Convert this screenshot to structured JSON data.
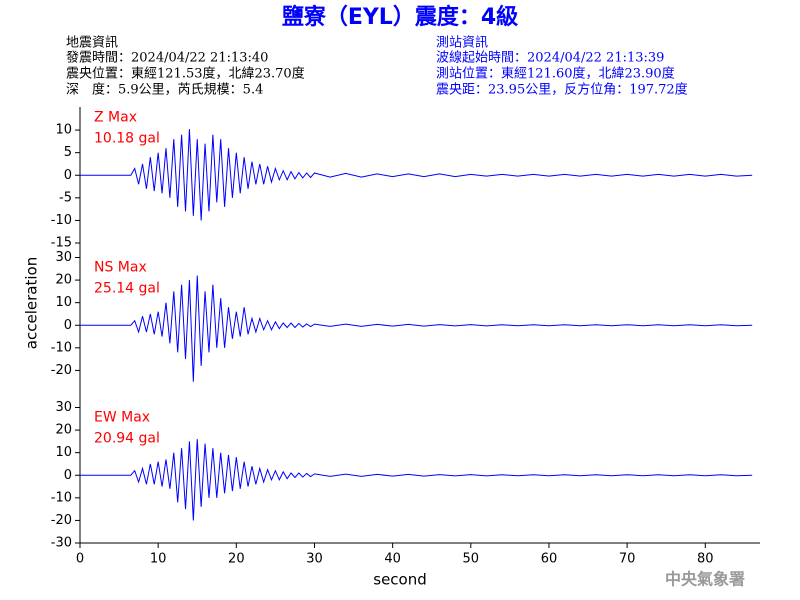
{
  "header": {
    "title": "鹽寮（EYL）震度：4級",
    "left": [
      "地震資訊",
      "發震時間：2024/04/22 21:13:40",
      "震央位置：東經121.53度，北緯23.70度",
      "深　度：5.9公里，芮氏規模：5.4"
    ],
    "right": [
      "測站資訊",
      "波線起始時間：2024/04/22 21:13:39",
      "測站位置：東經121.60度，北緯23.90度",
      "震央距：23.95公里，反方位角：197.72度"
    ]
  },
  "xlabel": "second",
  "ylabel": "acceleration",
  "footer": "中央氣象署",
  "chart_data": [
    {
      "type": "line",
      "label": "Z Max",
      "max_label": "10.18 gal",
      "color": "#0000ff",
      "x": [
        0,
        6.5,
        7,
        7.5,
        8,
        8.5,
        9,
        9.5,
        10,
        10.5,
        11,
        11.5,
        12,
        12.5,
        13,
        13.5,
        14,
        14.5,
        15,
        15.5,
        16,
        16.5,
        17,
        17.5,
        18,
        18.5,
        19,
        19.5,
        20,
        20.5,
        21,
        21.5,
        22,
        22.5,
        23,
        23.5,
        24,
        24.5,
        25,
        25.5,
        26,
        26.5,
        27,
        27.5,
        28,
        28.5,
        29,
        29.5,
        30,
        32,
        34,
        36,
        38,
        40,
        42,
        44,
        46,
        48,
        50,
        52,
        54,
        56,
        58,
        60,
        62,
        64,
        66,
        68,
        70,
        72,
        74,
        76,
        78,
        80,
        82,
        84,
        86
      ],
      "values": [
        0,
        0,
        1.5,
        -2,
        2.5,
        -3,
        4,
        -3.5,
        5,
        -4,
        6,
        -5,
        8,
        -7,
        9,
        -8,
        10.2,
        -9,
        8,
        -10,
        7,
        -8,
        9,
        -6,
        8,
        -7,
        6,
        -5,
        5,
        -4,
        4,
        -3,
        3,
        -2,
        2.5,
        -2,
        2,
        -1.5,
        1.5,
        -1,
        1,
        -1,
        0.8,
        -0.8,
        0.6,
        -0.6,
        0.5,
        -0.5,
        0.5,
        -0.4,
        0.4,
        -0.4,
        0.3,
        -0.3,
        0.3,
        -0.3,
        0.3,
        -0.3,
        0.2,
        -0.2,
        0.2,
        -0.2,
        0.2,
        -0.2,
        0.2,
        -0.2,
        0.2,
        -0.2,
        0.2,
        -0.2,
        0.2,
        -0.2,
        0.2,
        -0.2,
        0.2,
        -0.2,
        0
      ],
      "xlim": [
        0,
        87
      ],
      "ylim": [
        -15,
        15
      ],
      "yticks": [
        -15,
        -10,
        -5,
        0,
        5,
        10
      ]
    },
    {
      "type": "line",
      "label": "NS Max",
      "max_label": "25.14 gal",
      "color": "#0000ff",
      "x": [
        0,
        6.5,
        7,
        7.5,
        8,
        8.5,
        9,
        9.5,
        10,
        10.5,
        11,
        11.5,
        12,
        12.5,
        13,
        13.5,
        14,
        14.5,
        15,
        15.5,
        16,
        16.5,
        17,
        17.5,
        18,
        18.5,
        19,
        19.5,
        20,
        20.5,
        21,
        21.5,
        22,
        22.5,
        23,
        23.5,
        24,
        24.5,
        25,
        25.5,
        26,
        26.5,
        27,
        27.5,
        28,
        28.5,
        29,
        29.5,
        30,
        32,
        34,
        36,
        38,
        40,
        42,
        44,
        46,
        48,
        50,
        52,
        54,
        56,
        58,
        60,
        62,
        64,
        66,
        68,
        70,
        72,
        74,
        76,
        78,
        80,
        82,
        84,
        86
      ],
      "values": [
        0,
        0,
        2,
        -3,
        4,
        -3,
        5,
        -4,
        6,
        -5,
        10,
        -8,
        15,
        -12,
        18,
        -15,
        20,
        -25,
        22,
        -18,
        15,
        -12,
        18,
        -10,
        12,
        -10,
        8,
        -6,
        6,
        -5,
        8,
        -4,
        3,
        -3,
        3,
        -2,
        2,
        -2,
        1.5,
        -1.5,
        1,
        -1,
        1,
        -1,
        0.8,
        -0.8,
        0.6,
        -0.6,
        0.5,
        -0.5,
        0.5,
        -0.5,
        0.4,
        -0.4,
        0.4,
        -0.4,
        0.3,
        -0.3,
        0.3,
        -0.3,
        0.2,
        -0.2,
        0.2,
        -0.2,
        0.2,
        -0.2,
        0.2,
        -0.2,
        0.2,
        -0.2,
        0.2,
        -0.2,
        0.2,
        -0.2,
        0.2,
        -0.2,
        0
      ],
      "xlim": [
        0,
        87
      ],
      "ylim": [
        -30,
        30
      ],
      "yticks": [
        -20,
        -10,
        0,
        10,
        20,
        30
      ]
    },
    {
      "type": "line",
      "label": "EW Max",
      "max_label": "20.94 gal",
      "color": "#0000ff",
      "x": [
        0,
        6.5,
        7,
        7.5,
        8,
        8.5,
        9,
        9.5,
        10,
        10.5,
        11,
        11.5,
        12,
        12.5,
        13,
        13.5,
        14,
        14.5,
        15,
        15.5,
        16,
        16.5,
        17,
        17.5,
        18,
        18.5,
        19,
        19.5,
        20,
        20.5,
        21,
        21.5,
        22,
        22.5,
        23,
        23.5,
        24,
        24.5,
        25,
        25.5,
        26,
        26.5,
        27,
        27.5,
        28,
        28.5,
        29,
        29.5,
        30,
        32,
        34,
        36,
        38,
        40,
        42,
        44,
        46,
        48,
        50,
        52,
        54,
        56,
        58,
        60,
        62,
        64,
        66,
        68,
        70,
        72,
        74,
        76,
        78,
        80,
        82,
        84,
        86
      ],
      "values": [
        0,
        0,
        2,
        -3,
        3,
        -4,
        5,
        -4,
        6,
        -5,
        7,
        -6,
        10,
        -12,
        12,
        -15,
        15,
        -20,
        16,
        -14,
        14,
        -10,
        12,
        -10,
        10,
        -8,
        9,
        -7,
        8,
        -6,
        6,
        -5,
        4,
        -4,
        3,
        -3,
        2.5,
        -2,
        2,
        -2,
        1.5,
        -1.5,
        1,
        -1,
        1,
        -0.8,
        0.8,
        -0.6,
        0.6,
        -0.5,
        0.5,
        -0.5,
        0.4,
        -0.4,
        0.4,
        -0.4,
        0.3,
        -0.3,
        0.3,
        -0.3,
        0.2,
        -0.2,
        0.2,
        -0.2,
        0.2,
        -0.2,
        0.2,
        -0.2,
        0.2,
        -0.2,
        0.2,
        -0.2,
        0.2,
        -0.2,
        0.2,
        -0.2,
        0
      ],
      "xlim": [
        0,
        87
      ],
      "ylim": [
        -30,
        30
      ],
      "yticks": [
        -30,
        -20,
        -10,
        0,
        10,
        20,
        30
      ],
      "xticks": [
        0,
        10,
        20,
        30,
        40,
        50,
        60,
        70,
        80
      ]
    }
  ]
}
